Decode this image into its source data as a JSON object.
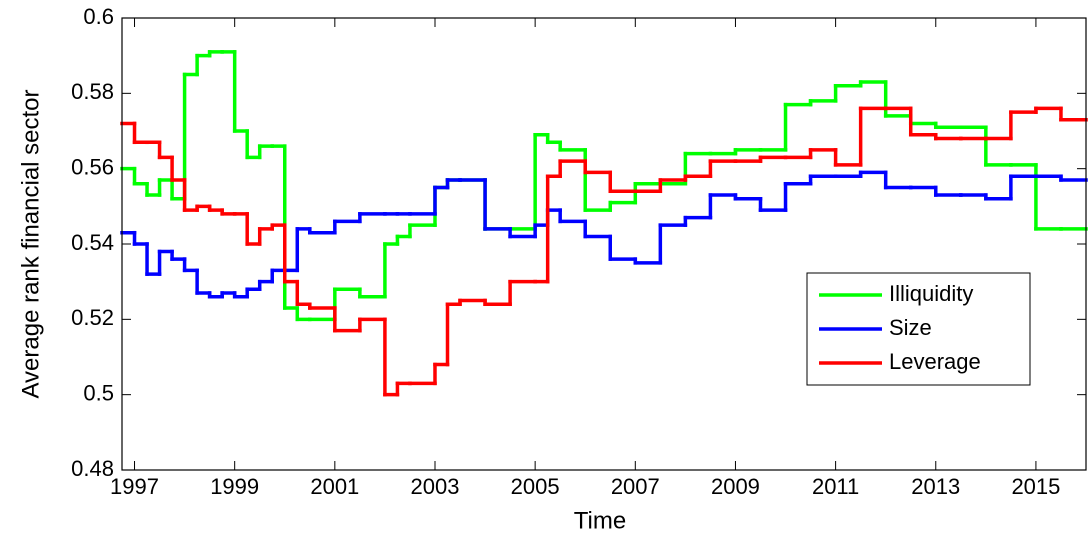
{
  "chart_data": {
    "type": "line",
    "step": "post",
    "xlabel": "Time",
    "ylabel": "Average rank financial sector",
    "x": [
      1996.75,
      1997.0,
      1997.25,
      1997.5,
      1997.75,
      1998.0,
      1998.25,
      1998.5,
      1998.75,
      1999.0,
      1999.25,
      1999.5,
      1999.75,
      2000.0,
      2000.25,
      2000.5,
      2001.0,
      2001.5,
      2002.0,
      2002.25,
      2002.5,
      2003.0,
      2003.25,
      2003.5,
      2004.0,
      2004.5,
      2005.0,
      2005.25,
      2005.5,
      2006.0,
      2006.5,
      2007.0,
      2007.5,
      2008.0,
      2008.5,
      2009.0,
      2009.5,
      2010.0,
      2010.5,
      2011.0,
      2011.5,
      2012.0,
      2012.5,
      2013.0,
      2013.5,
      2014.0,
      2014.5,
      2015.0,
      2015.5
    ],
    "series": [
      {
        "name": "Illiquidity",
        "color": "#00ff00",
        "values": [
          0.56,
          0.556,
          0.553,
          0.557,
          0.552,
          0.585,
          0.59,
          0.591,
          0.591,
          0.57,
          0.563,
          0.566,
          0.566,
          0.523,
          0.52,
          0.52,
          0.528,
          0.526,
          0.54,
          0.542,
          0.545,
          0.555,
          0.557,
          0.557,
          0.544,
          0.544,
          0.569,
          0.567,
          0.565,
          0.549,
          0.551,
          0.556,
          0.556,
          0.564,
          0.564,
          0.565,
          0.565,
          0.577,
          0.578,
          0.582,
          0.583,
          0.574,
          0.572,
          0.571,
          0.571,
          0.561,
          0.561,
          0.544,
          0.544
        ]
      },
      {
        "name": "Size",
        "color": "#0000ff",
        "values": [
          0.543,
          0.54,
          0.532,
          0.538,
          0.536,
          0.533,
          0.527,
          0.526,
          0.527,
          0.526,
          0.528,
          0.53,
          0.533,
          0.533,
          0.544,
          0.543,
          0.546,
          0.548,
          0.548,
          0.548,
          0.548,
          0.555,
          0.557,
          0.557,
          0.544,
          0.542,
          0.545,
          0.549,
          0.546,
          0.542,
          0.536,
          0.535,
          0.545,
          0.547,
          0.553,
          0.552,
          0.549,
          0.556,
          0.558,
          0.558,
          0.559,
          0.555,
          0.555,
          0.553,
          0.553,
          0.552,
          0.558,
          0.558,
          0.557
        ]
      },
      {
        "name": "Leverage",
        "color": "#ff0000",
        "values": [
          0.572,
          0.567,
          0.567,
          0.563,
          0.557,
          0.549,
          0.55,
          0.549,
          0.548,
          0.548,
          0.54,
          0.544,
          0.545,
          0.53,
          0.524,
          0.523,
          0.517,
          0.52,
          0.5,
          0.503,
          0.503,
          0.508,
          0.524,
          0.525,
          0.524,
          0.53,
          0.53,
          0.558,
          0.562,
          0.559,
          0.554,
          0.554,
          0.557,
          0.558,
          0.562,
          0.562,
          0.563,
          0.563,
          0.565,
          0.561,
          0.576,
          0.576,
          0.569,
          0.568,
          0.568,
          0.568,
          0.575,
          0.576,
          0.573
        ]
      }
    ],
    "xlim": [
      1996.75,
      2016
    ],
    "xticks": [
      1997,
      1999,
      2001,
      2003,
      2005,
      2007,
      2009,
      2011,
      2013,
      2015
    ],
    "ylim": [
      0.48,
      0.6
    ],
    "yticks": [
      0.48,
      0.5,
      0.52,
      0.54,
      0.56,
      0.58,
      0.6
    ],
    "grid": false,
    "legend": "lower right"
  }
}
